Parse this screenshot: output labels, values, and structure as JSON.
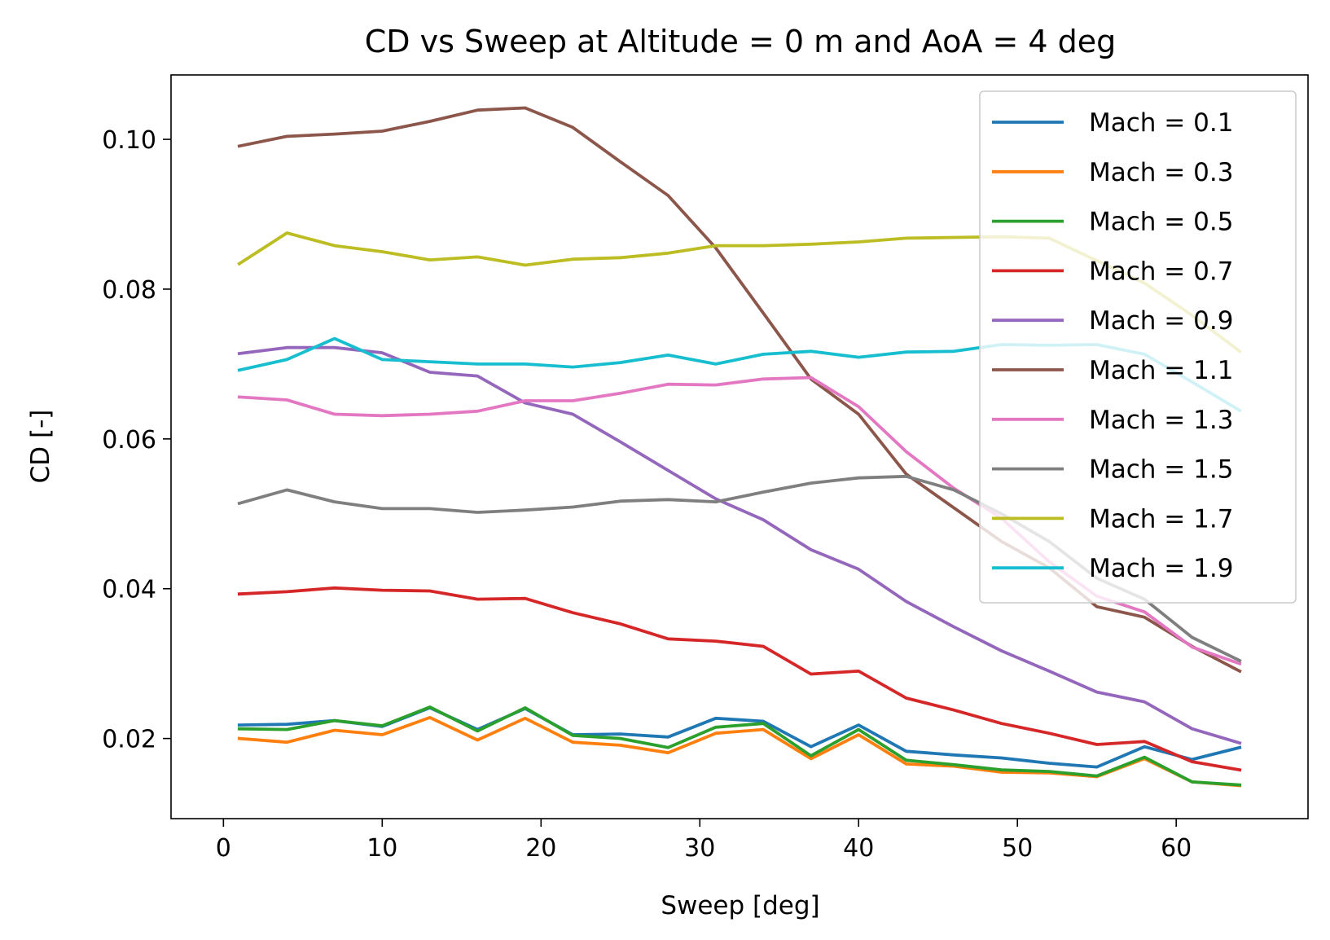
{
  "chart_data": {
    "type": "line",
    "title": "CD vs Sweep at Altitude = 0 m and AoA = 4 deg",
    "xlabel": "Sweep [deg]",
    "ylabel": "CD [-]",
    "xlim": [
      -3.3,
      68.3
    ],
    "ylim": [
      0.0093,
      0.1086
    ],
    "xticks": [
      0,
      10,
      20,
      30,
      40,
      50,
      60
    ],
    "yticks": [
      0.02,
      0.04,
      0.06,
      0.08,
      0.1
    ],
    "ytick_labels": [
      "0.02",
      "0.04",
      "0.06",
      "0.08",
      "0.10"
    ],
    "grid": false,
    "legend_position": "top-right",
    "x": [
      1,
      4,
      7,
      10,
      13,
      16,
      19,
      22,
      25,
      28,
      31,
      34,
      37,
      40,
      43,
      46,
      49,
      52,
      55,
      58,
      61,
      64
    ],
    "series": [
      {
        "name": "Mach = 0.1",
        "color": "#1f77b4",
        "values": [
          0.0218,
          0.0219,
          0.0224,
          0.0216,
          0.0241,
          0.0212,
          0.024,
          0.0205,
          0.0206,
          0.0202,
          0.0227,
          0.0223,
          0.0189,
          0.0218,
          0.0183,
          0.0178,
          0.0174,
          0.0167,
          0.0162,
          0.0189,
          0.0172,
          0.0188
        ]
      },
      {
        "name": "Mach = 0.3",
        "color": "#ff7f0e",
        "values": [
          0.02,
          0.0195,
          0.0211,
          0.0205,
          0.0228,
          0.0198,
          0.0227,
          0.0195,
          0.0191,
          0.0181,
          0.0207,
          0.0212,
          0.0173,
          0.0205,
          0.0166,
          0.0163,
          0.0155,
          0.0154,
          0.0149,
          0.0173,
          0.0142,
          0.0137
        ]
      },
      {
        "name": "Mach = 0.5",
        "color": "#2ca02c",
        "values": [
          0.0213,
          0.0212,
          0.0224,
          0.0217,
          0.0242,
          0.021,
          0.0241,
          0.0204,
          0.02,
          0.0188,
          0.0215,
          0.022,
          0.0177,
          0.0212,
          0.0171,
          0.0165,
          0.0158,
          0.0156,
          0.015,
          0.0175,
          0.0142,
          0.0138
        ]
      },
      {
        "name": "Mach = 0.7",
        "color": "#d62728",
        "values": [
          0.0393,
          0.0396,
          0.0401,
          0.0398,
          0.0397,
          0.0386,
          0.0387,
          0.0368,
          0.0353,
          0.0333,
          0.033,
          0.0323,
          0.0286,
          0.029,
          0.0254,
          0.0238,
          0.022,
          0.0207,
          0.0192,
          0.0196,
          0.0169,
          0.0158
        ]
      },
      {
        "name": "Mach = 0.9",
        "color": "#9467bd",
        "values": [
          0.0714,
          0.0722,
          0.0722,
          0.0715,
          0.0689,
          0.0684,
          0.0648,
          0.0633,
          0.0596,
          0.0558,
          0.052,
          0.0492,
          0.0452,
          0.0426,
          0.0383,
          0.0349,
          0.0317,
          0.029,
          0.0262,
          0.0249,
          0.0213,
          0.0194
        ]
      },
      {
        "name": "Mach = 1.1",
        "color": "#8c564b",
        "values": [
          0.0991,
          0.1004,
          0.1007,
          0.1011,
          0.1024,
          0.1039,
          0.1042,
          0.1016,
          0.097,
          0.0925,
          0.0855,
          0.0768,
          0.068,
          0.0633,
          0.0553,
          0.0508,
          0.0463,
          0.0428,
          0.0376,
          0.0362,
          0.0323,
          0.029
        ]
      },
      {
        "name": "Mach = 1.3",
        "color": "#e377c2",
        "values": [
          0.0656,
          0.0652,
          0.0633,
          0.0631,
          0.0633,
          0.0637,
          0.0651,
          0.0651,
          0.0661,
          0.0673,
          0.0672,
          0.068,
          0.0682,
          0.0643,
          0.0583,
          0.0534,
          0.0494,
          0.0436,
          0.039,
          0.0369,
          0.0322,
          0.03
        ]
      },
      {
        "name": "Mach = 1.5",
        "color": "#7f7f7f",
        "values": [
          0.0514,
          0.0532,
          0.0516,
          0.0507,
          0.0507,
          0.0502,
          0.0505,
          0.0509,
          0.0517,
          0.0519,
          0.0516,
          0.0529,
          0.0541,
          0.0548,
          0.055,
          0.0532,
          0.05,
          0.0463,
          0.0414,
          0.0386,
          0.0335,
          0.0304
        ]
      },
      {
        "name": "Mach = 1.7",
        "color": "#bcbd22",
        "values": [
          0.0834,
          0.0875,
          0.0858,
          0.085,
          0.0839,
          0.0843,
          0.0832,
          0.084,
          0.0842,
          0.0848,
          0.0858,
          0.0858,
          0.086,
          0.0863,
          0.0868,
          0.0869,
          0.087,
          0.0868,
          0.0838,
          0.0808,
          0.0765,
          0.0717
        ]
      },
      {
        "name": "Mach = 1.9",
        "color": "#17becf",
        "values": [
          0.0692,
          0.0706,
          0.0734,
          0.0706,
          0.0703,
          0.07,
          0.07,
          0.0696,
          0.0702,
          0.0712,
          0.07,
          0.0713,
          0.0717,
          0.0709,
          0.0716,
          0.0717,
          0.0726,
          0.0725,
          0.0726,
          0.0713,
          0.0676,
          0.0638
        ]
      }
    ]
  }
}
